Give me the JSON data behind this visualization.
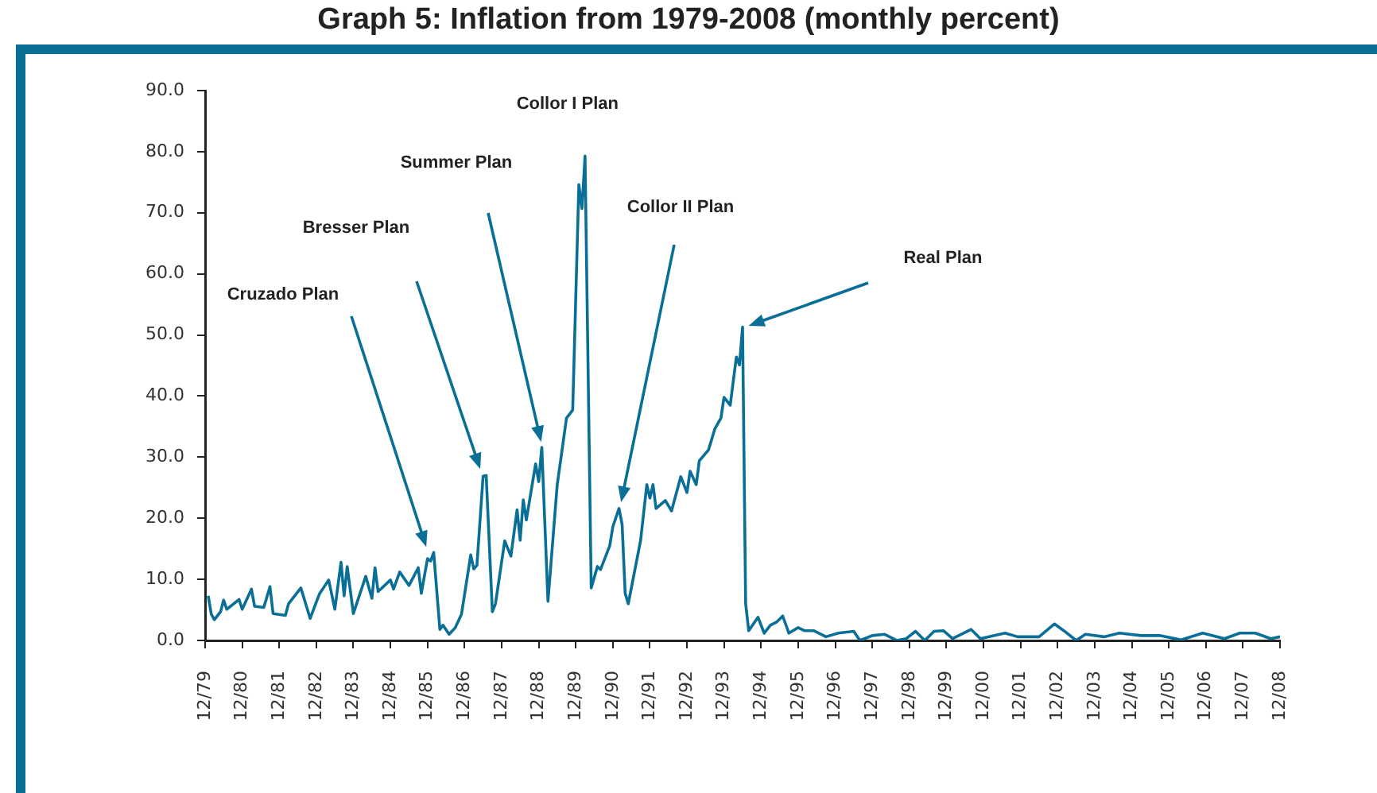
{
  "chart_data": {
    "type": "line",
    "title": "Graph 5: Inflation from 1979-2008 (monthly percent)",
    "series": [
      {
        "color": "#0a6f96",
        "x": [
          "1980-01",
          "1980-02",
          "1980-03",
          "1980-05",
          "1980-06",
          "1980-07",
          "1980-11",
          "1980-12",
          "1981-03",
          "1981-04",
          "1981-07",
          "1981-09",
          "1981-10",
          "1982-02",
          "1982-03",
          "1982-07",
          "1982-10",
          "1983-01",
          "1983-04",
          "1983-06",
          "1983-08",
          "1983-09",
          "1983-10",
          "1983-12",
          "1984-04",
          "1984-06",
          "1984-07",
          "1984-08",
          "1984-12",
          "1985-01",
          "1985-03",
          "1985-06",
          "1985-09",
          "1985-10",
          "1985-12",
          "1986-01",
          "1986-02",
          "1986-04",
          "1986-05",
          "1986-07",
          "1986-09",
          "1986-11",
          "1987-02",
          "1987-03",
          "1987-04",
          "1987-06",
          "1987-07",
          "1987-09",
          "1987-10",
          "1988-01",
          "1988-03",
          "1988-05",
          "1988-06",
          "1988-07",
          "1988-08",
          "1988-11",
          "1988-12",
          "1989-01",
          "1989-03",
          "1989-06",
          "1989-09",
          "1989-11",
          "1990-01",
          "1990-02",
          "1990-03",
          "1990-05",
          "1990-07",
          "1990-08",
          "1990-11",
          "1990-12",
          "1991-02",
          "1991-03",
          "1991-04",
          "1991-05",
          "1991-07",
          "1991-09",
          "1991-11",
          "1991-12",
          "1992-01",
          "1992-02",
          "1992-05",
          "1992-07",
          "1992-10",
          "1992-12",
          "1993-01",
          "1993-03",
          "1993-04",
          "1993-07",
          "1993-09",
          "1993-11",
          "1993-12",
          "1994-02",
          "1994-04",
          "1994-05",
          "1994-06",
          "1994-07",
          "1994-08",
          "1994-11",
          "1995-01",
          "1995-03",
          "1995-05",
          "1995-07",
          "1995-09",
          "1995-12",
          "1996-02",
          "1996-05",
          "1996-09",
          "1997-01",
          "1997-06",
          "1997-08",
          "1997-12",
          "1998-04",
          "1998-08",
          "1998-11",
          "1999-02",
          "1999-05",
          "1999-08",
          "1999-11",
          "2000-02",
          "2000-08",
          "2000-11",
          "2001-07",
          "2001-11",
          "2002-06",
          "2002-11",
          "2003-02",
          "2003-06",
          "2003-09",
          "2004-03",
          "2004-08",
          "2005-03",
          "2005-09",
          "2006-04",
          "2006-11",
          "2007-06",
          "2007-11",
          "2008-04",
          "2008-09",
          "2008-12"
        ],
        "values": [
          7.3,
          4.3,
          3.4,
          4.7,
          6.6,
          5.1,
          6.7,
          5.1,
          8.4,
          5.6,
          5.4,
          8.8,
          4.4,
          4.1,
          6.0,
          8.6,
          3.6,
          7.6,
          9.9,
          5.1,
          12.8,
          7.3,
          12.1,
          4.4,
          10.5,
          6.9,
          11.9,
          8.0,
          9.9,
          8.4,
          11.2,
          9.0,
          11.9,
          7.7,
          13.4,
          13.0,
          14.4,
          1.8,
          2.5,
          1.0,
          2.1,
          4.3,
          14.0,
          11.7,
          12.3,
          26.9,
          27.0,
          4.7,
          6.0,
          16.3,
          13.8,
          21.4,
          16.4,
          23.0,
          19.7,
          28.9,
          26.0,
          31.6,
          6.4,
          25.5,
          36.4,
          37.7,
          74.6,
          70.7,
          79.3,
          8.6,
          12.1,
          11.6,
          15.5,
          18.6,
          21.6,
          19.0,
          7.7,
          6.0,
          11.2,
          16.4,
          25.5,
          23.3,
          25.5,
          21.6,
          22.9,
          21.2,
          26.8,
          24.2,
          27.7,
          25.5,
          29.4,
          31.2,
          34.6,
          36.4,
          39.8,
          38.5,
          46.4,
          45.1,
          51.3,
          6.0,
          1.6,
          3.8,
          1.2,
          2.5,
          3.0,
          4.0,
          1.2,
          2.1,
          1.6,
          1.6,
          0.6,
          1.2,
          1.5,
          0.0,
          0.8,
          1.0,
          0.0,
          0.3,
          1.5,
          0.0,
          1.5,
          1.6,
          0.3,
          1.8,
          0.3,
          1.2,
          0.6,
          0.6,
          2.7,
          1.6,
          0.0,
          1.0,
          0.6,
          1.2,
          0.8,
          0.8,
          0.1,
          1.2,
          0.3,
          1.2,
          1.2,
          0.3,
          0.6
        ]
      }
    ],
    "xlim": [
      "1979-12",
      "2008-12"
    ],
    "xticks": [
      {
        "value": "1979-12",
        "label": "12/79"
      },
      {
        "value": "1980-12",
        "label": "12/80"
      },
      {
        "value": "1981-12",
        "label": "12/81"
      },
      {
        "value": "1982-12",
        "label": "12/82"
      },
      {
        "value": "1983-12",
        "label": "12/83"
      },
      {
        "value": "1984-12",
        "label": "12/84"
      },
      {
        "value": "1985-12",
        "label": "12/85"
      },
      {
        "value": "1986-12",
        "label": "12/86"
      },
      {
        "value": "1987-12",
        "label": "12/87"
      },
      {
        "value": "1988-12",
        "label": "12/88"
      },
      {
        "value": "1989-12",
        "label": "12/89"
      },
      {
        "value": "1990-12",
        "label": "12/90"
      },
      {
        "value": "1991-12",
        "label": "12/91"
      },
      {
        "value": "1992-12",
        "label": "12/92"
      },
      {
        "value": "1993-12",
        "label": "12/93"
      },
      {
        "value": "1994-12",
        "label": "12/94"
      },
      {
        "value": "1995-12",
        "label": "12/95"
      },
      {
        "value": "1996-12",
        "label": "12/96"
      },
      {
        "value": "1997-12",
        "label": "12/97"
      },
      {
        "value": "1998-12",
        "label": "12/98"
      },
      {
        "value": "1999-12",
        "label": "12/99"
      },
      {
        "value": "2000-12",
        "label": "12/00"
      },
      {
        "value": "2001-12",
        "label": "12/01"
      },
      {
        "value": "2002-12",
        "label": "12/02"
      },
      {
        "value": "2003-12",
        "label": "12/03"
      },
      {
        "value": "2004-12",
        "label": "12/04"
      },
      {
        "value": "2005-12",
        "label": "12/05"
      },
      {
        "value": "2006-12",
        "label": "12/06"
      },
      {
        "value": "2007-12",
        "label": "12/07"
      },
      {
        "value": "2008-12",
        "label": "12/08"
      }
    ],
    "ylim": [
      0,
      90
    ],
    "yticks": [
      {
        "value": 0,
        "label": "0.0"
      },
      {
        "value": 10,
        "label": "10.0"
      },
      {
        "value": 20,
        "label": "20.0"
      },
      {
        "value": 30,
        "label": "30.0"
      },
      {
        "value": 40,
        "label": "40.0"
      },
      {
        "value": 50,
        "label": "50.0"
      },
      {
        "value": 60,
        "label": "60.0"
      },
      {
        "value": 70,
        "label": "70.0"
      },
      {
        "value": 80,
        "label": "80.0"
      },
      {
        "value": 90,
        "label": "90.0"
      }
    ],
    "annotations": [
      "Cruzado Plan",
      "Bresser Plan",
      "Summer Plan",
      {
        "text": "Collor I Plan",
        "x": "1990-03",
        "y": 79.3
      },
      "Collor II Plan",
      "Real Plan"
    ],
    "grid": false,
    "legend": false,
    "marker": "none",
    "line_style": "solid"
  }
}
